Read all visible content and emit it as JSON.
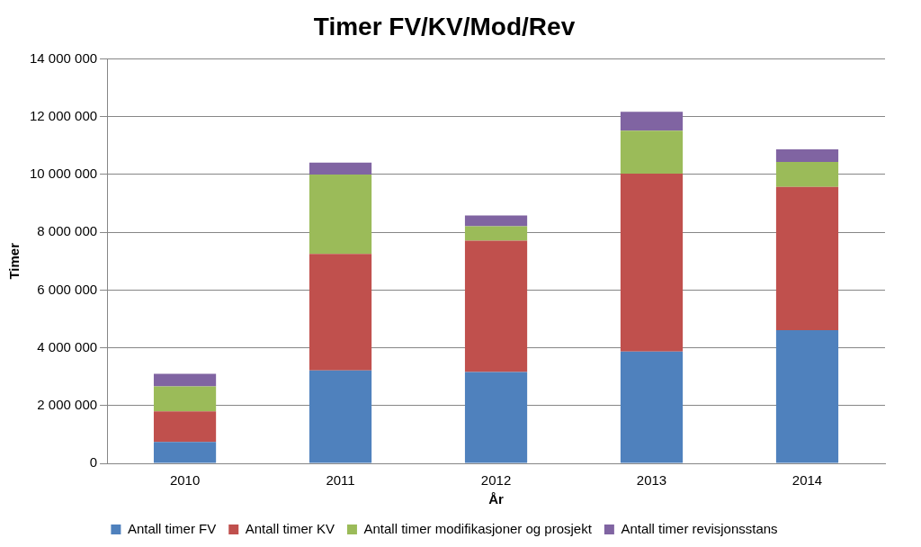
{
  "chart_data": {
    "type": "bar",
    "title": "Timer FV/KV/Mod/Rev",
    "x_label": "År",
    "y_label": "Timer",
    "categories": [
      "2010",
      "2011",
      "2012",
      "2013",
      "2014"
    ],
    "series": [
      {
        "name": "Antall timer FV",
        "color": "#4f81bd",
        "values": [
          740000,
          3220000,
          3160000,
          3870000,
          4610000
        ]
      },
      {
        "name": "Antall timer KV",
        "color": "#c0504d",
        "values": [
          1060000,
          4030000,
          4550000,
          6160000,
          4960000
        ]
      },
      {
        "name": "Antall timer modifikasjoner og prosjekt",
        "color": "#9bbb59",
        "values": [
          860000,
          2750000,
          500000,
          1490000,
          870000
        ]
      },
      {
        "name": "Antall timer revisjonsstans",
        "color": "#8064a2",
        "values": [
          440000,
          410000,
          370000,
          650000,
          430000
        ]
      }
    ],
    "stacked": true,
    "ylim": [
      0,
      14000000
    ],
    "yticks": [
      0,
      {
        "value": 2000000,
        "label": "2 000 000"
      },
      {
        "value": 4000000,
        "label": "4 000 000"
      },
      {
        "value": 6000000,
        "label": "6 000 000"
      },
      {
        "value": 8000000,
        "label": "8 000 000"
      },
      {
        "value": 10000000,
        "label": "10 000 000"
      },
      {
        "value": 12000000,
        "label": "12 000 000"
      },
      {
        "value": 14000000,
        "label": "14 000 000"
      }
    ],
    "grid": true,
    "legend": "bottom"
  }
}
